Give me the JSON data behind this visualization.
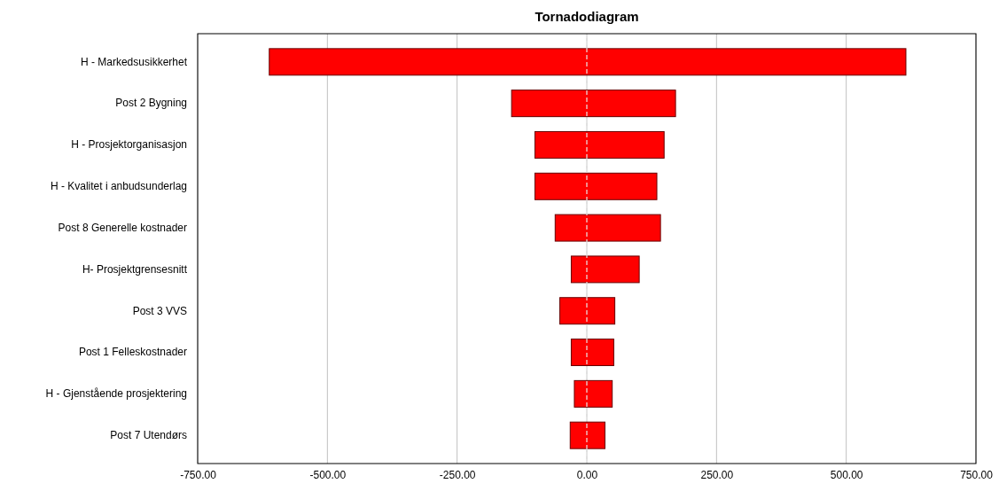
{
  "chart_data": {
    "type": "bar",
    "orientation": "horizontal",
    "title": "Tornadodiagram",
    "categories": [
      "H - Markedsusikkerhet",
      "Post 2 Bygning",
      "H - Prosjektorganisasjon",
      "H - Kvalitet i anbudsunderlag",
      "Post 8 Generelle kostnader",
      "H- Prosjektgrensesnitt",
      "Post 3 VVS",
      "Post 1 Felleskostnader",
      "H - Gjenstående prosjektering",
      "Post 7 Utendørs"
    ],
    "base": [
      -612,
      -145,
      -100,
      -100,
      -61,
      -30,
      -52,
      -30,
      -24,
      -32
    ],
    "values": [
      1227,
      316,
      249,
      235,
      203,
      131,
      106,
      82,
      73,
      67
    ],
    "color": "#ff0000",
    "xlim": [
      -750,
      750
    ],
    "xticks": [
      {
        "value": -750,
        "label": "-750.00"
      },
      {
        "value": -500,
        "label": "-500.00"
      },
      {
        "value": -250,
        "label": "-250.00"
      },
      {
        "value": 0,
        "label": "0.00"
      },
      {
        "value": 250,
        "label": "250.00"
      },
      {
        "value": 500,
        "label": "500.00"
      },
      {
        "value": 750,
        "label": "750.00"
      }
    ],
    "grid": "x",
    "ref_lines": [
      {
        "axis": "x",
        "value": 0,
        "color": "#e8e8e8",
        "line_style": "dashed"
      }
    ]
  }
}
